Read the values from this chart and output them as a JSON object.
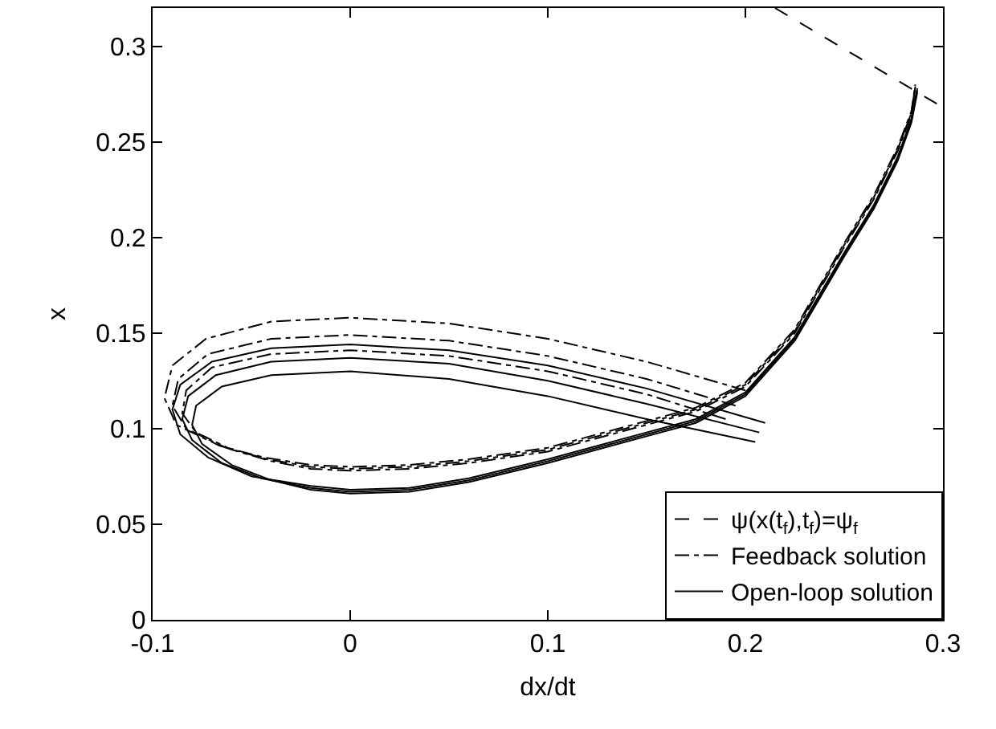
{
  "chart_data": {
    "type": "line",
    "xlabel": "dx/dt",
    "ylabel": "x",
    "xlim": [
      -0.1,
      0.3
    ],
    "xticks": [
      -0.1,
      0,
      0.1,
      0.2,
      0.3
    ],
    "ylim": [
      0,
      0.32
    ],
    "yticks": [
      0,
      0.05,
      0.1,
      0.15,
      0.2,
      0.25,
      0.3
    ],
    "grid": false,
    "legend": "bottom right",
    "marker": "none",
    "series": [
      {
        "name": "ψ(x(t$_{f}$),t$_{f}$)=ψ$_{f}$",
        "color": "#000000",
        "line_style": "dashed",
        "x": [
          0.215,
          0.3
        ],
        "values": [
          0.32,
          0.268
        ]
      },
      {
        "name": "Feedback solution",
        "color": "#000000",
        "line_style": "dashdot",
        "x": [
          0.19,
          0.15,
          0.1,
          0.05,
          0,
          -0.04,
          -0.07,
          -0.083,
          -0.085,
          -0.078,
          -0.06,
          -0.04,
          -0.02,
          0,
          0.03,
          0.06,
          0.1,
          0.15,
          0.175,
          0.2,
          0.225,
          0.25,
          0.265,
          0.277,
          0.284,
          0.286
        ],
        "values": [
          0.105,
          0.118,
          0.13,
          0.138,
          0.141,
          0.139,
          0.132,
          0.12,
          0.108,
          0.098,
          0.089,
          0.083,
          0.079,
          0.078,
          0.079,
          0.082,
          0.088,
          0.102,
          0.109,
          0.122,
          0.15,
          0.195,
          0.22,
          0.245,
          0.264,
          0.278
        ]
      },
      {
        "color": "#000000",
        "line_style": "dashdot",
        "x": [
          0.195,
          0.15,
          0.1,
          0.05,
          0,
          -0.04,
          -0.072,
          -0.087,
          -0.09,
          -0.083,
          -0.063,
          -0.042,
          -0.02,
          0,
          0.03,
          0.06,
          0.1,
          0.15,
          0.175,
          0.2,
          0.225,
          0.25,
          0.265,
          0.277,
          0.284,
          0.286
        ],
        "values": [
          0.112,
          0.126,
          0.138,
          0.146,
          0.149,
          0.147,
          0.139,
          0.126,
          0.112,
          0.1,
          0.09,
          0.084,
          0.08,
          0.079,
          0.08,
          0.083,
          0.089,
          0.103,
          0.11,
          0.123,
          0.151,
          0.196,
          0.221,
          0.246,
          0.265,
          0.279
        ]
      },
      {
        "color": "#000000",
        "line_style": "dashdot",
        "x": [
          0.2,
          0.15,
          0.1,
          0.05,
          0,
          -0.04,
          -0.073,
          -0.09,
          -0.094,
          -0.088,
          -0.066,
          -0.044,
          -0.02,
          0,
          0.03,
          0.06,
          0.1,
          0.15,
          0.175,
          0.2,
          0.225,
          0.25,
          0.265,
          0.277,
          0.284,
          0.286
        ],
        "values": [
          0.12,
          0.135,
          0.147,
          0.155,
          0.158,
          0.156,
          0.147,
          0.133,
          0.116,
          0.102,
          0.091,
          0.085,
          0.081,
          0.08,
          0.081,
          0.084,
          0.09,
          0.104,
          0.111,
          0.124,
          0.152,
          0.197,
          0.222,
          0.247,
          0.266,
          0.28
        ]
      },
      {
        "name": "Open-loop solution",
        "color": "#000000",
        "line_style": "solid",
        "x": [
          0.205,
          0.15,
          0.1,
          0.05,
          0,
          -0.04,
          -0.065,
          -0.078,
          -0.08,
          -0.075,
          -0.06,
          -0.04,
          -0.02,
          0,
          0.03,
          0.06,
          0.1,
          0.15,
          0.175,
          0.2,
          0.225,
          0.25,
          0.265,
          0.277,
          0.284,
          0.287
        ],
        "values": [
          0.093,
          0.105,
          0.117,
          0.126,
          0.13,
          0.128,
          0.122,
          0.112,
          0.102,
          0.092,
          0.081,
          0.073,
          0.068,
          0.066,
          0.067,
          0.072,
          0.082,
          0.096,
          0.103,
          0.117,
          0.146,
          0.19,
          0.215,
          0.24,
          0.26,
          0.276
        ]
      },
      {
        "color": "#000000",
        "line_style": "solid",
        "x": [
          0.207,
          0.15,
          0.1,
          0.05,
          0,
          -0.04,
          -0.068,
          -0.082,
          -0.085,
          -0.08,
          -0.065,
          -0.045,
          -0.02,
          0,
          0.03,
          0.06,
          0.1,
          0.15,
          0.175,
          0.2,
          0.225,
          0.25,
          0.265,
          0.277,
          0.284,
          0.287
        ],
        "values": [
          0.098,
          0.113,
          0.125,
          0.134,
          0.137,
          0.135,
          0.128,
          0.117,
          0.105,
          0.094,
          0.082,
          0.074,
          0.069,
          0.067,
          0.068,
          0.073,
          0.083,
          0.097,
          0.104,
          0.118,
          0.147,
          0.191,
          0.216,
          0.241,
          0.261,
          0.277
        ]
      },
      {
        "color": "#000000",
        "line_style": "solid",
        "x": [
          0.21,
          0.15,
          0.1,
          0.05,
          0,
          -0.04,
          -0.07,
          -0.086,
          -0.09,
          -0.086,
          -0.072,
          -0.05,
          -0.02,
          0,
          0.03,
          0.06,
          0.1,
          0.15,
          0.175,
          0.2,
          0.225,
          0.25,
          0.265,
          0.277,
          0.284,
          0.287
        ],
        "values": [
          0.103,
          0.121,
          0.133,
          0.141,
          0.144,
          0.142,
          0.135,
          0.123,
          0.11,
          0.097,
          0.085,
          0.075,
          0.07,
          0.068,
          0.069,
          0.074,
          0.084,
          0.098,
          0.105,
          0.119,
          0.148,
          0.192,
          0.217,
          0.242,
          0.262,
          0.278
        ]
      }
    ]
  }
}
